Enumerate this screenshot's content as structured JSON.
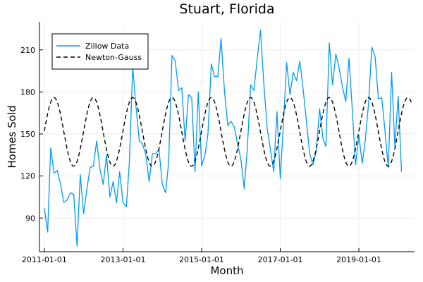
{
  "chart_data": {
    "type": "line",
    "title": "Stuart, Florida",
    "xlabel": "Month",
    "ylabel": "Homes Sold",
    "x_axis": {
      "kind": "date",
      "range": [
        "2010-11-17",
        "2020-06-01"
      ],
      "ticks": [
        "2011-01-01",
        "2013-01-01",
        "2015-01-01",
        "2017-01-01",
        "2019-01-01"
      ]
    },
    "y_axis": {
      "range": [
        66,
        230
      ],
      "ticks": [
        90,
        120,
        150,
        180,
        210
      ]
    },
    "grid": true,
    "legend": {
      "placement": "top-left"
    },
    "colors": {
      "zillow": "#009AFA",
      "fit": "#000000",
      "grid": "#ebebeb",
      "axis": "#000000"
    },
    "series": [
      {
        "name": "Zillow Data",
        "style": "solid",
        "start": "2011-01-01",
        "frequency": "monthly",
        "values": [
          97,
          80,
          140,
          122,
          124,
          114,
          101,
          103,
          108,
          107,
          70,
          121,
          93,
          111,
          126,
          127,
          145,
          125,
          114,
          135,
          105,
          116,
          101,
          123,
          101,
          98,
          130,
          198,
          170,
          145,
          143,
          135,
          116,
          136,
          136,
          139,
          114,
          108,
          130,
          206,
          202,
          181,
          183,
          145,
          178,
          176,
          123,
          180,
          127,
          135,
          150,
          200,
          191,
          191,
          218,
          181,
          156,
          159,
          155,
          143,
          132,
          111,
          140,
          185,
          181,
          204,
          224,
          186,
          154,
          139,
          123,
          166,
          118,
          160,
          201,
          178,
          194,
          188,
          202,
          182,
          159,
          136,
          128,
          138,
          168,
          147,
          141,
          215,
          185,
          207,
          197,
          184,
          173,
          204,
          167,
          128,
          149,
          129,
          145,
          172,
          212,
          205,
          175,
          176,
          152,
          126,
          194,
          141,
          177,
          123
        ]
      },
      {
        "name": "Newton-Gauss",
        "style": "dashed",
        "model": "seasonal sinusoid",
        "mean": 151.5,
        "amplitude": 24.5,
        "period_months": 12,
        "peak_month": "April",
        "start": "2011-01-01",
        "end": "2020-05-01"
      }
    ]
  }
}
